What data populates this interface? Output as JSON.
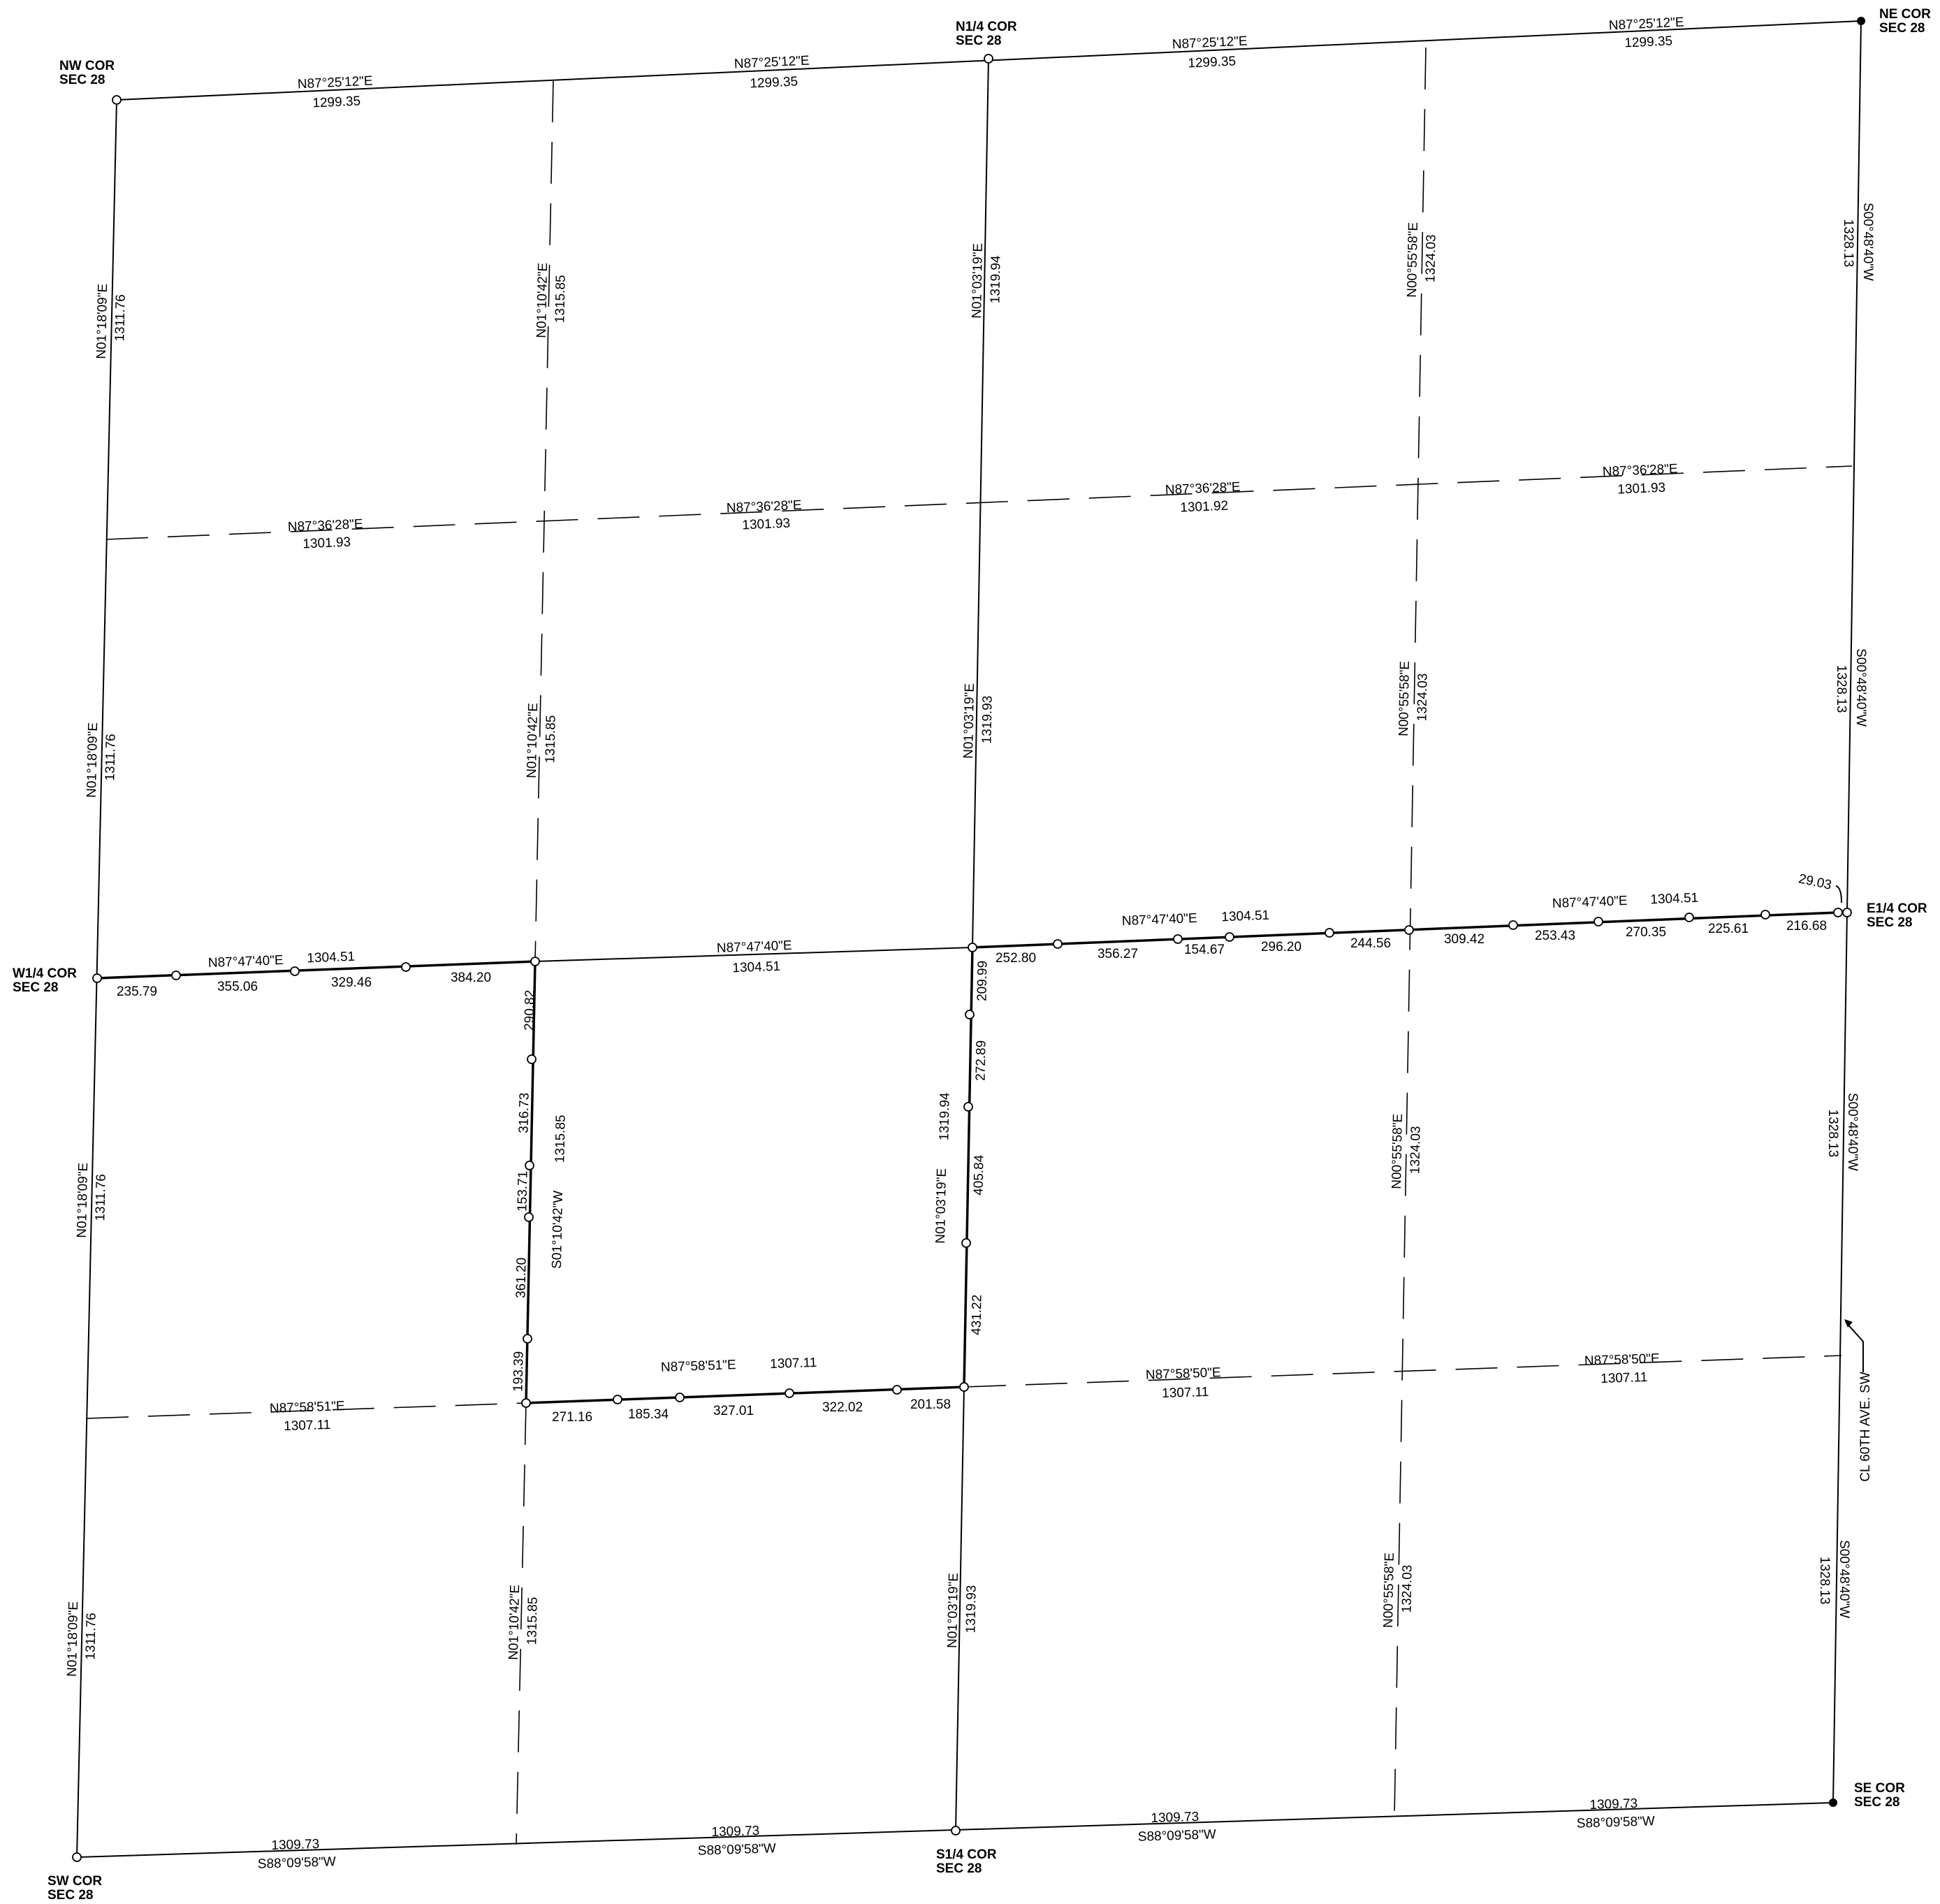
{
  "corners": {
    "nw": [
      "NW COR",
      "SEC 28"
    ],
    "n14": [
      "N1/4 COR",
      "SEC 28"
    ],
    "ne": [
      "NE COR",
      "SEC 28"
    ],
    "w14": [
      "W1/4 COR",
      "SEC 28"
    ],
    "e14": [
      "E1/4 COR",
      "SEC 28"
    ],
    "sw": [
      "SW COR",
      "SEC 28"
    ],
    "s14": [
      "S1/4 COR",
      "SEC 28"
    ],
    "se": [
      "SE COR",
      "SEC 28"
    ]
  },
  "north_line": {
    "bearing": "N87°25'12\"E",
    "distance": "1299.35"
  },
  "north_sixteenth_line": {
    "bearing": "N87°36'28\"E",
    "distance_west": "1301.93",
    "distance_center_east": "1301.92"
  },
  "quarter_line": {
    "bearing": "N87°47'40\"E",
    "distance": "1304.51",
    "segments_west": [
      "235.79",
      "355.06",
      "329.46",
      "384.20"
    ],
    "segments_east": [
      "252.80",
      "356.27",
      "154.67",
      "296.20",
      "244.56",
      "309.42",
      "253.43",
      "270.35",
      "225.61",
      "216.68"
    ],
    "tie": "29.03"
  },
  "south_sixteenth_line": {
    "bearing_west": "N87°58'51\"E",
    "bearing_east": "N87°58'50\"E",
    "distance": "1307.11",
    "segments": [
      "271.16",
      "185.34",
      "327.01",
      "322.02",
      "201.58"
    ]
  },
  "south_line": {
    "bearing": "S88°09'58\"W",
    "distance": "1309.73"
  },
  "west_line": {
    "bearing": "N01°18'09\"E",
    "distance": "1311.76"
  },
  "west_sixteenth_line": {
    "bearing": "N01°10'42\"E",
    "bearing_reverse": "S01°10'42\"W",
    "distance": "1315.85",
    "segments": [
      "290.82",
      "316.73",
      "153.71",
      "361.20",
      "193.39"
    ]
  },
  "center_line": {
    "bearing": "N01°03'19\"E",
    "distance_north": "1319.94",
    "distance": "1319.93",
    "segments": [
      "209.99",
      "272.89",
      "405.84",
      "431.22"
    ]
  },
  "east_sixteenth_line": {
    "bearing": "N00°55'58\"E",
    "distance": "1324.03"
  },
  "east_line": {
    "bearing": "S00°48'40\"W",
    "distance": "1328.13"
  },
  "road_label": "CL 60TH AVE. SW"
}
